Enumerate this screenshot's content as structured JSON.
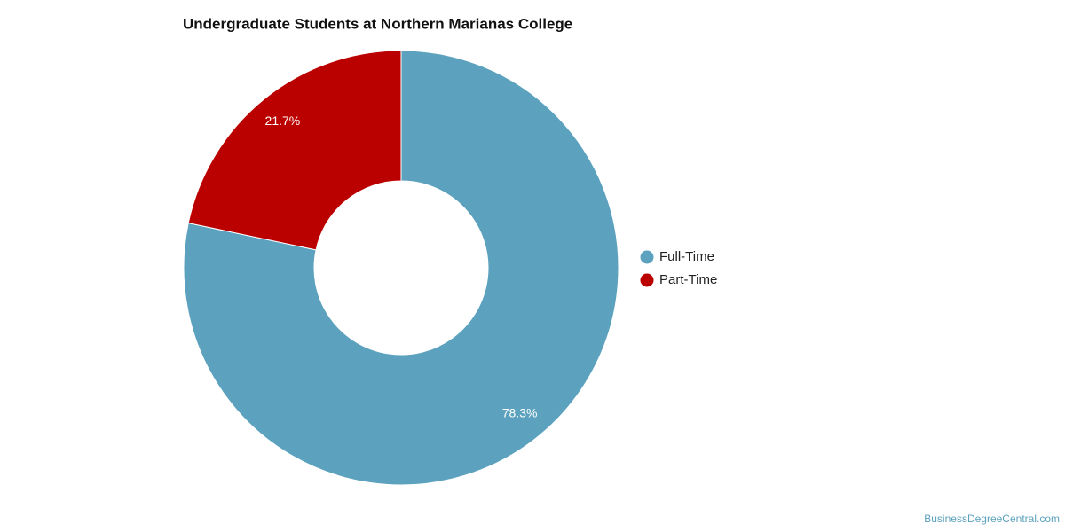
{
  "chart_data": {
    "type": "donut",
    "title": "Undergraduate Students at Northern Marianas College",
    "categories": [
      "Full-Time",
      "Part-Time"
    ],
    "values": [
      78.3,
      21.7
    ],
    "value_labels": [
      "78.3%",
      "21.7%"
    ],
    "colors": [
      "#5ca2be",
      "#bb0000"
    ],
    "legend": "right",
    "source": "BusinessDegreeCentral.com"
  }
}
